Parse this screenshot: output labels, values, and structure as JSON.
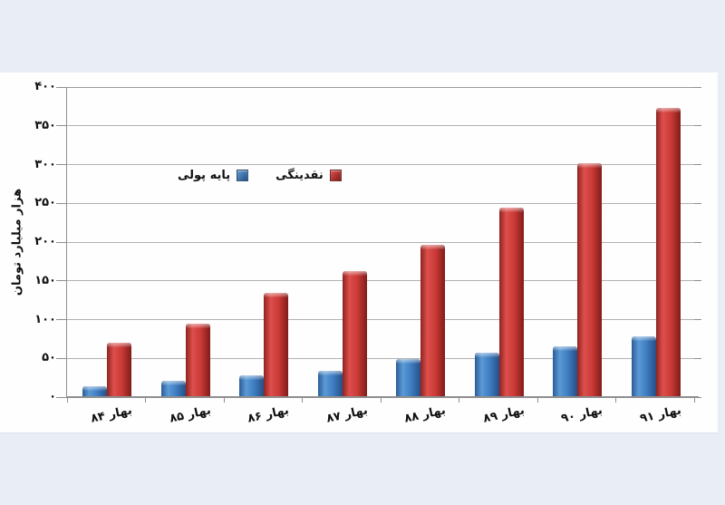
{
  "page": {
    "background": "#e9edf6",
    "panel_background": "#fefefe",
    "grid_color": "#b2b2b2",
    "axis_color": "#8f8f8f",
    "text_color": "#111111"
  },
  "chart_data": {
    "type": "bar",
    "title": "",
    "xlabel": "",
    "ylabel": "هزار میلیارد تومان",
    "categories": [
      "بهار ۸۴",
      "بهار ۸۵",
      "بهار ۸۶",
      "بهار ۸۷",
      "بهار ۸۸",
      "بهار ۸۹",
      "بهار ۹۰",
      "بهار ۹۱"
    ],
    "series": [
      {
        "name": "پایه پولی",
        "color": "#3f7fc6",
        "gradient": [
          "#2b5c97",
          "#5b9ad5",
          "#3d7cc0",
          "#274f86"
        ],
        "values": [
          14,
          21,
          28,
          34,
          49,
          57,
          65,
          78
        ]
      },
      {
        "name": "نقدینگی",
        "color": "#c93936",
        "gradient": [
          "#8e2320",
          "#dd4f4c",
          "#c93936",
          "#801c19"
        ],
        "values": [
          70,
          95,
          134,
          162,
          196,
          245,
          302,
          373
        ]
      }
    ],
    "ylim": [
      0,
      400
    ],
    "ytick_step": 50,
    "ytick_labels": [
      "۰",
      "۵۰",
      "۱۰۰",
      "۱۵۰",
      "۲۰۰",
      "۲۵۰",
      "۳۰۰",
      "۳۵۰",
      "۴۰۰"
    ],
    "grid": true,
    "legend_position": "inside-top-left",
    "rtl": true
  }
}
